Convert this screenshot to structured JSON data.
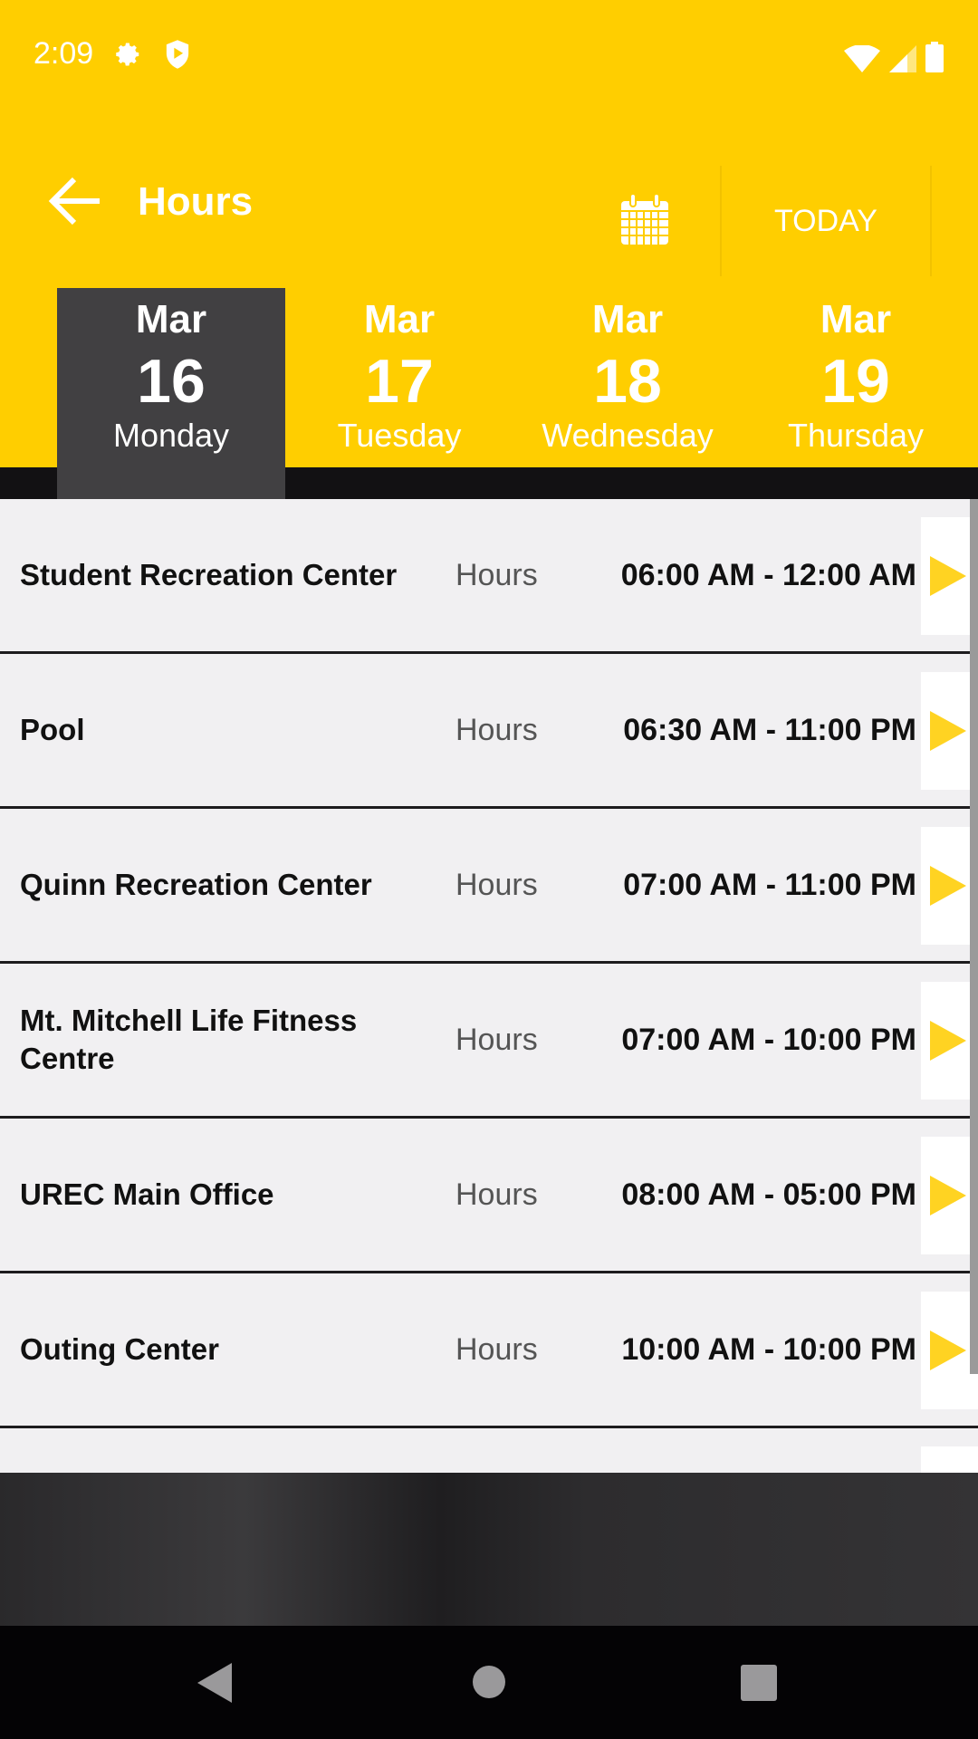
{
  "status_bar": {
    "time": "2:09",
    "icons": [
      "gear-icon",
      "shield-play-icon",
      "wifi-icon",
      "signal-icon",
      "battery-icon"
    ]
  },
  "toolbar": {
    "title": "Hours",
    "today_label": "TODAY"
  },
  "dates": [
    {
      "month": "Mar",
      "day": "16",
      "weekday": "Monday",
      "selected": true
    },
    {
      "month": "Mar",
      "day": "17",
      "weekday": "Tuesday",
      "selected": false
    },
    {
      "month": "Mar",
      "day": "18",
      "weekday": "Wednesday",
      "selected": false
    },
    {
      "month": "Mar",
      "day": "19",
      "weekday": "Thursday",
      "selected": false
    }
  ],
  "facilities": [
    {
      "name": "Student Recreation Center",
      "label": "Hours",
      "time": "06:00 AM - 12:00 AM"
    },
    {
      "name": "Pool",
      "label": "Hours",
      "time": "06:30 AM - 11:00 PM"
    },
    {
      "name": "Quinn Recreation Center",
      "label": "Hours",
      "time": "07:00 AM - 11:00 PM"
    },
    {
      "name": "Mt. Mitchell Life Fitness Centre",
      "label": "Hours",
      "time": "07:00 AM - 10:00 PM"
    },
    {
      "name": "UREC Main Office",
      "label": "Hours",
      "time": "08:00 AM - 05:00 PM"
    },
    {
      "name": "Outing Center",
      "label": "Hours",
      "time": "10:00 AM - 10:00 PM"
    }
  ],
  "colors": {
    "brand": "#FFCE00",
    "selected_tab": "#414042",
    "arrow": "#FFD322"
  }
}
